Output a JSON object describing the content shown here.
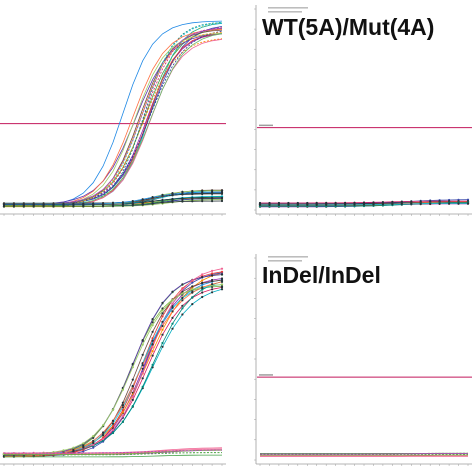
{
  "colors": {
    "threshold": "#c2185b",
    "background": "#ffffff",
    "axis": "#9e9e9e",
    "series_palette": [
      "#1e88e5",
      "#d81b60",
      "#43a047",
      "#8e24aa",
      "#fb8c00",
      "#00acc1",
      "#3949ab",
      "#7cb342",
      "#e53935",
      "#5e35b1",
      "#00897b",
      "#6d4c41",
      "#f06292",
      "#26c6da",
      "#9ccc65",
      "#ff7043",
      "#283593",
      "#ab47bc",
      "#66bb6a",
      "#ffa726"
    ],
    "cluster_line": "#263238",
    "flat_line": "#7986cb"
  },
  "panels": [
    {
      "id": "top-left",
      "label": ""
    },
    {
      "id": "top-right",
      "label": "WT(5A)/Mut(4A)"
    },
    {
      "id": "bottom-left",
      "label": ""
    },
    {
      "id": "bottom-right",
      "label": "InDel/InDel"
    }
  ],
  "chart_data": [
    {
      "type": "line",
      "title": "",
      "xlabel": "",
      "ylabel": "",
      "x": [
        1,
        3,
        5,
        7,
        9,
        11,
        13,
        15,
        17,
        19,
        21,
        23,
        25,
        27,
        29,
        31,
        33,
        35,
        37,
        39,
        41,
        43,
        45
      ],
      "ylim": [
        0,
        1
      ],
      "threshold": 0.43,
      "grid": false,
      "groups": [
        {
          "name": "",
          "count": 20,
          "midpoint_range": [
            25,
            31
          ],
          "plateau_range": [
            0.83,
            0.93
          ],
          "slope_range": [
            2.9,
            3.6
          ],
          "markers": false
        },
        {
          "name": "",
          "count": 14,
          "midpoint_range": [
            30,
            34
          ],
          "plateau_range": [
            0.025,
            0.07
          ],
          "slope_range": [
            2.5,
            3.2
          ],
          "markers": true
        }
      ]
    },
    {
      "type": "line",
      "title": "",
      "xlabel": "",
      "ylabel": "",
      "x": [
        1,
        3,
        5,
        7,
        9,
        11,
        13,
        15,
        17,
        19,
        21,
        23,
        25,
        27,
        29,
        31,
        33,
        35,
        37,
        39,
        41,
        43,
        45
      ],
      "ylim": [
        0,
        1
      ],
      "threshold": 0.41,
      "grid": false,
      "groups": [
        {
          "name": "",
          "count": 12,
          "midpoint_range": [
            26,
            34
          ],
          "plateau_range": [
            0.005,
            0.02
          ],
          "slope_range": [
            3.0,
            4.0
          ],
          "markers": true
        }
      ]
    },
    {
      "type": "line",
      "title": "",
      "xlabel": "",
      "ylabel": "",
      "x": [
        1,
        3,
        5,
        7,
        9,
        11,
        13,
        15,
        17,
        19,
        21,
        23,
        25,
        27,
        29,
        31,
        33,
        35,
        37,
        39,
        41,
        43,
        45
      ],
      "ylim": [
        0,
        1
      ],
      "threshold": null,
      "grid": false,
      "groups": [
        {
          "name": "",
          "count": 16,
          "midpoint_range": [
            26,
            31
          ],
          "plateau_range": [
            0.84,
            0.93
          ],
          "slope_range": [
            3.5,
            4.2
          ],
          "markers": true
        },
        {
          "name": "",
          "count": 8,
          "midpoint_range": [
            30,
            34
          ],
          "plateau_range": [
            0.0,
            0.03
          ],
          "slope_range": [
            3.0,
            4.0
          ],
          "markers": false
        }
      ]
    },
    {
      "type": "line",
      "title": "",
      "xlabel": "",
      "ylabel": "",
      "x": [
        1,
        3,
        5,
        7,
        9,
        11,
        13,
        15,
        17,
        19,
        21,
        23,
        25,
        27,
        29,
        31,
        33,
        35,
        37,
        39,
        41,
        43,
        45
      ],
      "ylim": [
        0,
        1
      ],
      "threshold": 0.41,
      "grid": false,
      "groups": [
        {
          "name": "",
          "count": 8,
          "midpoint_range": [
            30,
            34
          ],
          "plateau_range": [
            0.0,
            0.004
          ],
          "slope_range": [
            3.0,
            4.0
          ],
          "markers": false
        }
      ]
    }
  ]
}
